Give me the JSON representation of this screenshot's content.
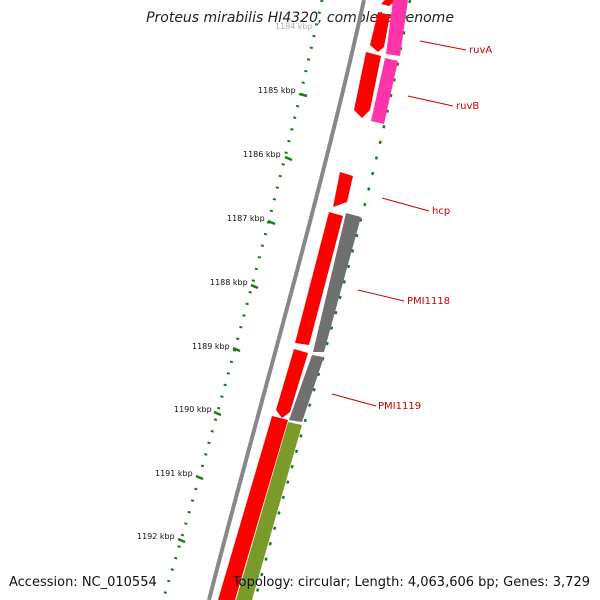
{
  "title": "Proteus mirabilis HI4320, complete genome",
  "footer": {
    "accession": "Accession: NC_010554",
    "summary": "Topology: circular; Length: 4,063,606 bp; Genes: 3,729"
  },
  "colors": {
    "forward_cds": "#ff0000",
    "reverse_cds_grey": "#707070",
    "reverse_cds_green": "#7a9a2a",
    "pink_feature": "#ff33aa",
    "backbone": "#888888",
    "tick": "#1a7a1a",
    "label_line": "#cc0000",
    "label_text": "#cc0000"
  },
  "scale_ticks": [
    {
      "label": "1184 kbp"
    },
    {
      "label": "1185 kbp"
    },
    {
      "label": "1186 kbp"
    },
    {
      "label": "1187 kbp"
    },
    {
      "label": "1188 kbp"
    },
    {
      "label": "1189 kbp"
    },
    {
      "label": "1190 kbp"
    },
    {
      "label": "1191 kbp"
    },
    {
      "label": "1192 kbp"
    }
  ],
  "gene_labels": [
    "ruvA",
    "ruvB",
    "hcp",
    "PMI1118",
    "PMI1119"
  ]
}
